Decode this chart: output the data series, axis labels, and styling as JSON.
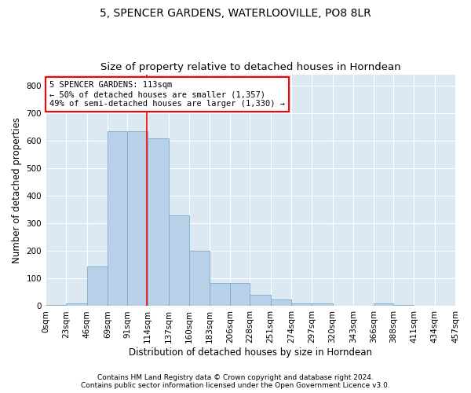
{
  "title": "5, SPENCER GARDENS, WATERLOOVILLE, PO8 8LR",
  "subtitle": "Size of property relative to detached houses in Horndean",
  "xlabel": "Distribution of detached houses by size in Horndean",
  "ylabel": "Number of detached properties",
  "footer1": "Contains HM Land Registry data © Crown copyright and database right 2024.",
  "footer2": "Contains public sector information licensed under the Open Government Licence v3.0.",
  "bin_edges": [
    0,
    23,
    46,
    69,
    91,
    114,
    137,
    160,
    183,
    206,
    228,
    251,
    274,
    297,
    320,
    343,
    366,
    388,
    411,
    434,
    457
  ],
  "bin_labels": [
    "0sqm",
    "23sqm",
    "46sqm",
    "69sqm",
    "91sqm",
    "114sqm",
    "137sqm",
    "160sqm",
    "183sqm",
    "206sqm",
    "228sqm",
    "251sqm",
    "274sqm",
    "297sqm",
    "320sqm",
    "343sqm",
    "366sqm",
    "388sqm",
    "411sqm",
    "434sqm",
    "457sqm"
  ],
  "counts": [
    5,
    10,
    145,
    635,
    633,
    608,
    330,
    200,
    83,
    83,
    42,
    25,
    10,
    10,
    0,
    0,
    10,
    5,
    0,
    0,
    3
  ],
  "bar_color": "#b8d0e8",
  "bar_edge_color": "#7aaac8",
  "red_line_x": 113,
  "annotation_line1": "5 SPENCER GARDENS: 113sqm",
  "annotation_line2": "← 50% of detached houses are smaller (1,357)",
  "annotation_line3": "49% of semi-detached houses are larger (1,330) →",
  "annotation_box_color": "white",
  "annotation_box_edge": "red",
  "ylim": [
    0,
    840
  ],
  "yticks": [
    0,
    100,
    200,
    300,
    400,
    500,
    600,
    700,
    800
  ],
  "bg_color": "#dce8f2",
  "grid_color": "white",
  "title_fontsize": 10,
  "subtitle_fontsize": 9.5,
  "label_fontsize": 8.5,
  "tick_fontsize": 7.5,
  "annotation_fontsize": 7.5,
  "footer_fontsize": 6.5
}
